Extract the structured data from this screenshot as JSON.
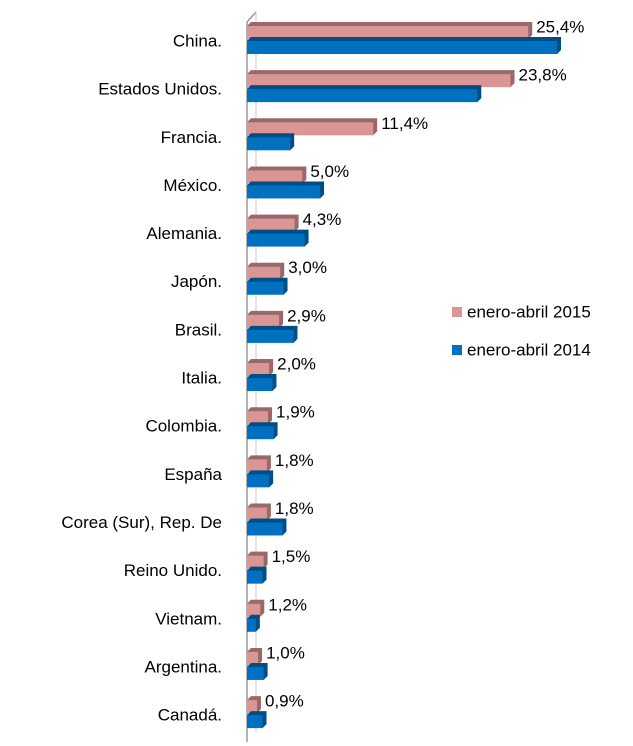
{
  "chart_data": {
    "type": "bar",
    "orientation": "horizontal",
    "categories": [
      "China.",
      "Estados Unidos.",
      "Francia.",
      "México.",
      "Alemania.",
      "Japón.",
      "Brasil.",
      "Italia.",
      "Colombia.",
      "España",
      "Corea (Sur), Rep. De",
      "Reino Unido.",
      "Vietnam.",
      "Argentina.",
      "Canadá."
    ],
    "series": [
      {
        "name": "enero-abril 2015",
        "color": "#d99694",
        "values": [
          25.4,
          23.8,
          11.4,
          5.0,
          4.3,
          3.0,
          2.9,
          2.0,
          1.9,
          1.8,
          1.8,
          1.5,
          1.2,
          1.0,
          0.9
        ],
        "value_labels": [
          "25,4%",
          "23,8%",
          "11,4%",
          "5,0%",
          "4,3%",
          "3,0%",
          "2,9%",
          "2,0%",
          "1,9%",
          "1,8%",
          "1,8%",
          "1,5%",
          "1,2%",
          "1,0%",
          "0,9%"
        ]
      },
      {
        "name": "enero-abril 2014",
        "color": "#0070c0",
        "values": [
          28.0,
          20.8,
          3.9,
          6.6,
          5.2,
          3.3,
          4.2,
          2.3,
          2.4,
          2.0,
          3.2,
          1.4,
          0.8,
          1.5,
          1.4
        ]
      }
    ],
    "xlim": [
      0,
      28
    ],
    "legend": "right"
  }
}
